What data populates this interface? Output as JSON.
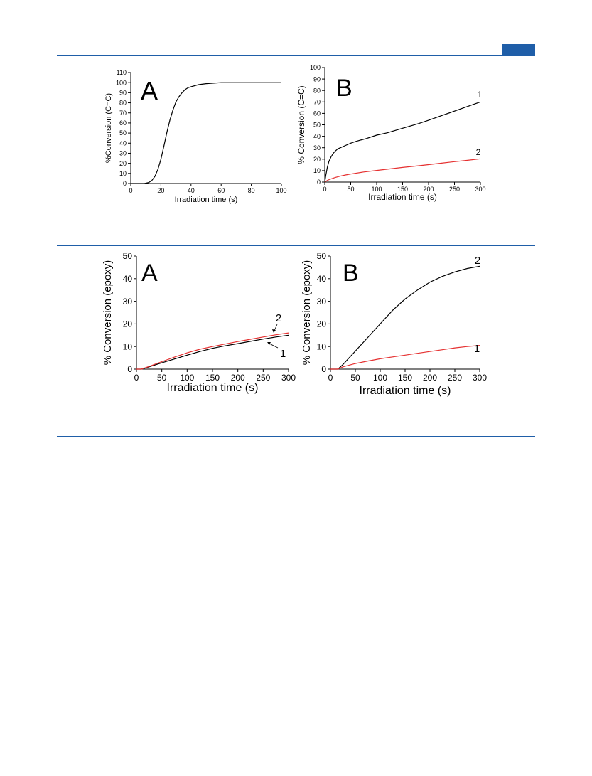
{
  "colors": {
    "rule": "#1f5ea8",
    "black_series": "#000000",
    "red_series": "#e53030"
  },
  "chart_data": [
    {
      "id": "top-A",
      "type": "line",
      "panel_letter": "A",
      "xlabel": "Irradiation time (s)",
      "ylabel": "%Conversion (C=C)",
      "xlim": [
        0,
        100
      ],
      "ylim": [
        0,
        110
      ],
      "xticks": [
        0,
        20,
        40,
        60,
        80,
        100
      ],
      "yticks": [
        0,
        10,
        20,
        30,
        40,
        50,
        60,
        70,
        80,
        90,
        100,
        110
      ],
      "series": [
        {
          "color": "#000000",
          "x": [
            0,
            9,
            12,
            14,
            16,
            18,
            20,
            22,
            24,
            26,
            28,
            30,
            32,
            34,
            36,
            38,
            40,
            45,
            50,
            55,
            60,
            65,
            70,
            80,
            90,
            100
          ],
          "y": [
            0,
            0,
            1,
            3,
            7,
            14,
            24,
            37,
            51,
            63,
            73,
            81,
            86,
            90,
            93,
            95,
            96,
            98,
            99,
            99.5,
            100,
            100,
            100,
            100,
            100,
            100
          ]
        }
      ]
    },
    {
      "id": "top-B",
      "type": "line",
      "panel_letter": "B",
      "xlabel": "Irradiation time (s)",
      "ylabel": "% Conversion (C=C)",
      "xlim": [
        0,
        300
      ],
      "ylim": [
        0,
        100
      ],
      "xticks": [
        0,
        50,
        100,
        150,
        200,
        250,
        300
      ],
      "yticks": [
        0,
        10,
        20,
        30,
        40,
        50,
        60,
        70,
        80,
        90,
        100
      ],
      "series": [
        {
          "label": "1",
          "color": "#000000",
          "x": [
            0,
            2,
            5,
            8,
            12,
            16,
            20,
            25,
            30,
            40,
            50,
            60,
            80,
            100,
            120,
            150,
            180,
            200,
            225,
            250,
            275,
            300
          ],
          "y": [
            0,
            6,
            13,
            18,
            22,
            25,
            27,
            29,
            30,
            32,
            34,
            35.5,
            38,
            41,
            43,
            47,
            51,
            54,
            58,
            62,
            66,
            70
          ]
        },
        {
          "label": "2",
          "color": "#e53030",
          "x": [
            0,
            5,
            10,
            20,
            30,
            40,
            50,
            75,
            100,
            125,
            150,
            175,
            200,
            225,
            250,
            275,
            300
          ],
          "y": [
            0,
            1.5,
            2.5,
            4,
            5.2,
            6.2,
            7,
            8.8,
            10.2,
            11.5,
            12.8,
            14,
            15.2,
            16.5,
            17.8,
            19,
            20.3
          ]
        }
      ]
    },
    {
      "id": "bottom-A",
      "type": "line",
      "panel_letter": "A",
      "xlabel": "Irradiation time (s)",
      "ylabel": "% Conversion (epoxy)",
      "xlim": [
        0,
        300
      ],
      "ylim": [
        0,
        50
      ],
      "xticks": [
        0,
        50,
        100,
        150,
        200,
        250,
        300
      ],
      "yticks": [
        0,
        10,
        20,
        30,
        40,
        50
      ],
      "annotations": [
        "2",
        "1"
      ],
      "series": [
        {
          "label": "1",
          "color": "#000000",
          "x": [
            0,
            10,
            25,
            50,
            75,
            100,
            125,
            150,
            175,
            200,
            225,
            250,
            275,
            300
          ],
          "y": [
            0,
            0,
            1,
            2.8,
            4.5,
            6.2,
            7.8,
            9.2,
            10.3,
            11.3,
            12.3,
            13.3,
            14.2,
            15
          ]
        },
        {
          "label": "2",
          "color": "#e53030",
          "x": [
            0,
            10,
            25,
            50,
            75,
            100,
            125,
            150,
            175,
            200,
            225,
            250,
            275,
            300
          ],
          "y": [
            0,
            0,
            1.2,
            3.3,
            5.3,
            7.2,
            8.8,
            10,
            11.1,
            12.2,
            13.2,
            14.2,
            15.2,
            16
          ]
        }
      ]
    },
    {
      "id": "bottom-B",
      "type": "line",
      "panel_letter": "B",
      "xlabel": "Irradiation time (s)",
      "ylabel": "% Conversion (epoxy)",
      "xlim": [
        0,
        300
      ],
      "ylim": [
        0,
        50
      ],
      "xticks": [
        0,
        50,
        100,
        150,
        200,
        250,
        300
      ],
      "yticks": [
        0,
        10,
        20,
        30,
        40,
        50
      ],
      "series": [
        {
          "label": "2",
          "color": "#000000",
          "x": [
            0,
            15,
            25,
            50,
            75,
            100,
            125,
            150,
            175,
            200,
            225,
            250,
            275,
            300
          ],
          "y": [
            0,
            0,
            2,
            8,
            14,
            20,
            26,
            31,
            35,
            38.5,
            41,
            43,
            44.5,
            45.5
          ]
        },
        {
          "label": "1",
          "color": "#e53030",
          "x": [
            0,
            15,
            25,
            50,
            75,
            100,
            125,
            150,
            175,
            200,
            225,
            250,
            275,
            300
          ],
          "y": [
            0,
            0,
            1,
            2.5,
            3.6,
            4.6,
            5.4,
            6.2,
            7,
            7.8,
            8.6,
            9.4,
            10,
            10.5
          ]
        }
      ]
    }
  ]
}
